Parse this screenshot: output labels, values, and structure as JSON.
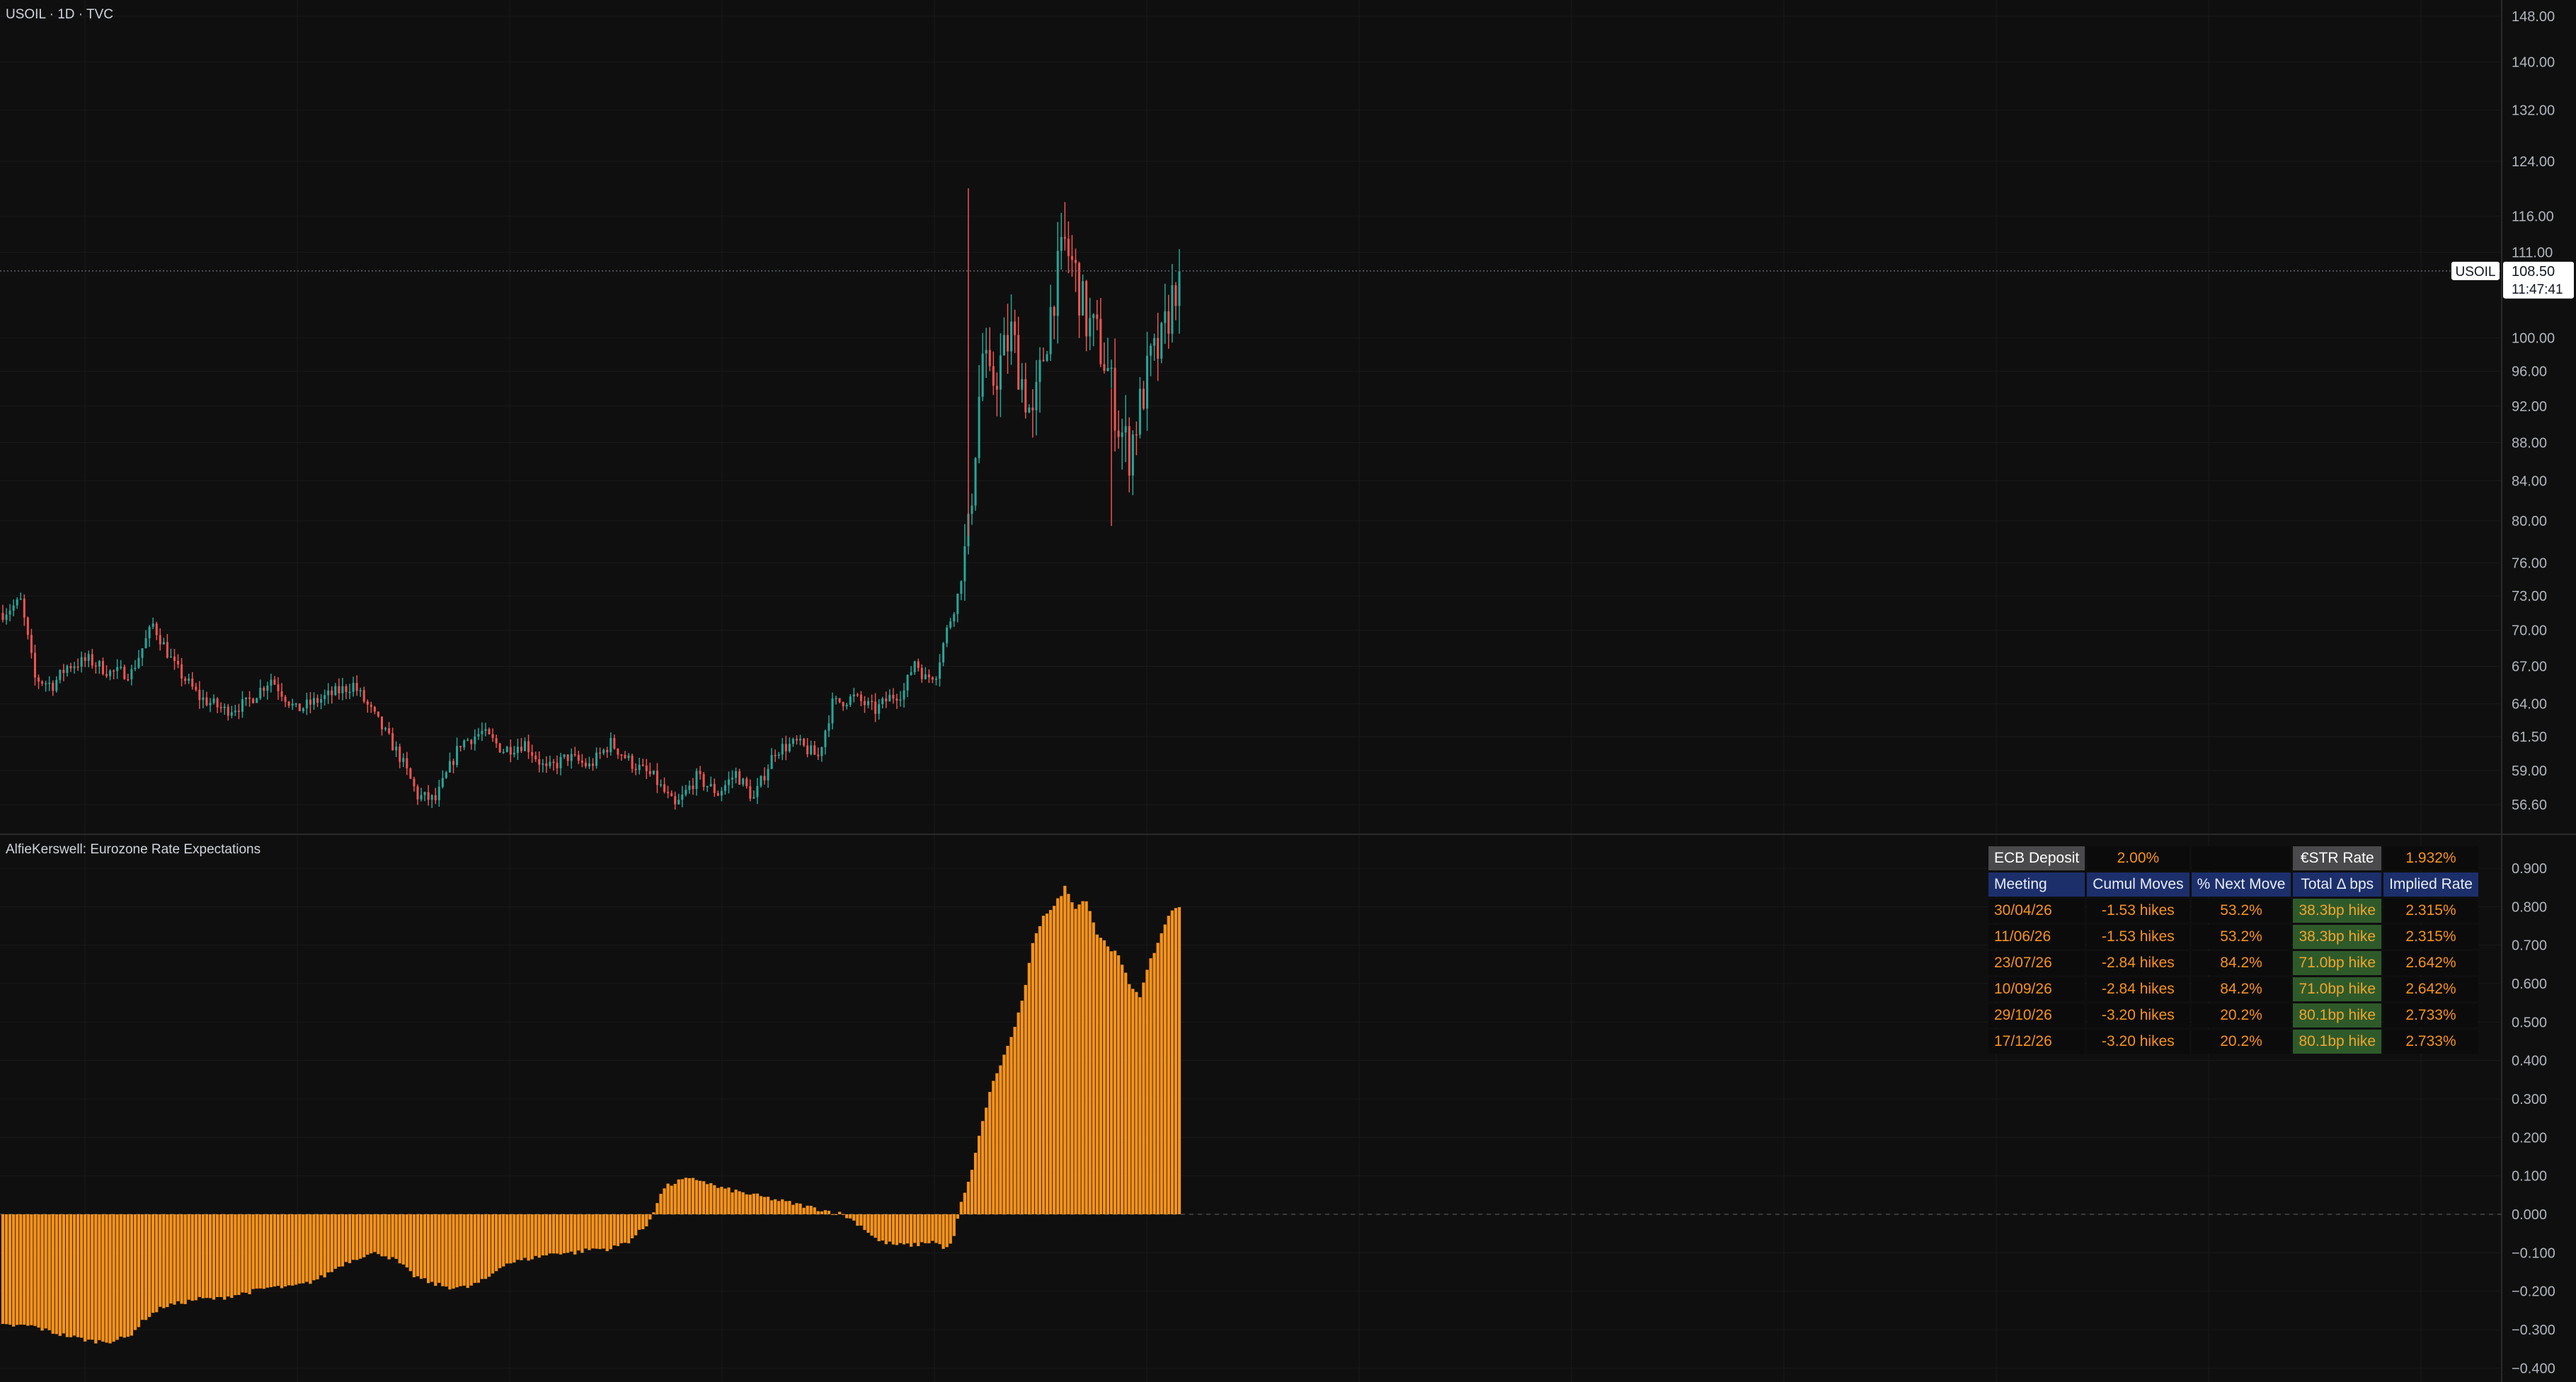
{
  "main_pane": {
    "legend": "USOIL · 1D · TVC",
    "price_label": {
      "symbol": "USOIL",
      "price": "108.50",
      "countdown": "11:47:41",
      "value": 108.5
    }
  },
  "sub_pane": {
    "legend": "AlfieKerswell: Eurozone Rate Expectations"
  },
  "rate_table": {
    "top_row": {
      "ecb_label": "ECB Deposit",
      "ecb_value": "2.00%",
      "blank": "",
      "estr_label": "€STR Rate",
      "estr_value": "1.932%"
    },
    "columns": [
      "Meeting",
      "Cumul Moves",
      "% Next Move",
      "Total Δ bps",
      "Implied Rate"
    ],
    "rows": [
      [
        "30/04/26",
        "-1.53 hikes",
        "53.2%",
        "38.3bp hike",
        "2.315%"
      ],
      [
        "11/06/26",
        "-1.53 hikes",
        "53.2%",
        "38.3bp hike",
        "2.315%"
      ],
      [
        "23/07/26",
        "-2.84 hikes",
        "84.2%",
        "71.0bp hike",
        "2.642%"
      ],
      [
        "10/09/26",
        "-2.84 hikes",
        "84.2%",
        "71.0bp hike",
        "2.642%"
      ],
      [
        "29/10/26",
        "-3.20 hikes",
        "20.2%",
        "80.1bp hike",
        "2.733%"
      ],
      [
        "17/12/26",
        "-3.20 hikes",
        "20.2%",
        "80.1bp hike",
        "2.733%"
      ]
    ]
  },
  "colors": {
    "background": "#0f0f0f",
    "grid": "#1a1a1a",
    "up": "#26a69a",
    "down": "#ef5350",
    "histogram": "#f7931a",
    "axis_text": "#b2b5be"
  },
  "chart_data": [
    {
      "type": "candlestick",
      "title": "USOIL · 1D · TVC",
      "scale": "log",
      "ylim": [
        53.5,
        152
      ],
      "y_ticks": [
        "148.00",
        "140.00",
        "132.00",
        "124.00",
        "116.00",
        "111.00",
        "100.00",
        "96.00",
        "92.00",
        "88.00",
        "84.00",
        "80.00",
        "76.00",
        "73.00",
        "70.00",
        "67.00",
        "64.00",
        "61.50",
        "59.00",
        "56.60"
      ],
      "last_value": 108.5,
      "ohlc_anchor_closes": [
        [
          0,
          71.5
        ],
        [
          5,
          72.5
        ],
        [
          9,
          66.0
        ],
        [
          14,
          65.5
        ],
        [
          18,
          67.0
        ],
        [
          24,
          67.5
        ],
        [
          30,
          66.5
        ],
        [
          36,
          66.5
        ],
        [
          42,
          70.5
        ],
        [
          48,
          67.0
        ],
        [
          55,
          64.5
        ],
        [
          62,
          63.5
        ],
        [
          68,
          64.0
        ],
        [
          75,
          66.0
        ],
        [
          82,
          63.5
        ],
        [
          90,
          64.5
        ],
        [
          98,
          65.5
        ],
        [
          104,
          63.0
        ],
        [
          111,
          60.0
        ],
        [
          116,
          57.2
        ],
        [
          121,
          56.9
        ],
        [
          128,
          61.0
        ],
        [
          134,
          61.8
        ],
        [
          140,
          60.5
        ],
        [
          146,
          61.0
        ],
        [
          152,
          59.0
        ],
        [
          158,
          60.0
        ],
        [
          164,
          59.3
        ],
        [
          170,
          61.0
        ],
        [
          176,
          59.5
        ],
        [
          182,
          58.5
        ],
        [
          188,
          56.4
        ],
        [
          194,
          58.5
        ],
        [
          200,
          57.4
        ],
        [
          205,
          58.8
        ],
        [
          210,
          57.0
        ],
        [
          216,
          60.5
        ],
        [
          222,
          61.0
        ],
        [
          228,
          60.0
        ],
        [
          232,
          64.0
        ],
        [
          238,
          64.5
        ],
        [
          244,
          63.5
        ],
        [
          248,
          64.5
        ],
        [
          252,
          65.0
        ],
        [
          255,
          67.5
        ],
        [
          258,
          66.0
        ],
        [
          261,
          66.5
        ],
        [
          264,
          70.0
        ],
        [
          267,
          73.0
        ],
        [
          270,
          78.5
        ],
        [
          272,
          88.0
        ],
        [
          274,
          98.0
        ],
        [
          276,
          94.0
        ],
        [
          279,
          97.0
        ],
        [
          282,
          100.5
        ],
        [
          285,
          95.0
        ],
        [
          288,
          90.0
        ],
        [
          291,
          98.0
        ],
        [
          294,
          106.0
        ],
        [
          297,
          112.0
        ],
        [
          300,
          108.0
        ],
        [
          303,
          102.0
        ],
        [
          306,
          100.0
        ],
        [
          309,
          96.0
        ],
        [
          312,
          90.0
        ],
        [
          315,
          87.0
        ],
        [
          318,
          92.0
        ],
        [
          321,
          97.0
        ],
        [
          324,
          99.0
        ],
        [
          327,
          105.0
        ],
        [
          329,
          108.5
        ]
      ],
      "n_bars": 330
    },
    {
      "type": "bar",
      "title": "AlfieKerswell: Eurozone Rate Expectations",
      "ylim": [
        -0.43,
        0.97
      ],
      "y_ticks": [
        "0.900",
        "0.800",
        "0.700",
        "0.600",
        "0.500",
        "0.400",
        "0.300",
        "0.200",
        "0.100",
        "0.000",
        "−0.100",
        "−0.200",
        "−0.300",
        "−0.400"
      ],
      "n_bars": 330,
      "anchors": [
        [
          0,
          -0.29
        ],
        [
          8,
          -0.29
        ],
        [
          15,
          -0.31
        ],
        [
          20,
          -0.32
        ],
        [
          25,
          -0.33
        ],
        [
          30,
          -0.33
        ],
        [
          35,
          -0.32
        ],
        [
          40,
          -0.27
        ],
        [
          45,
          -0.24
        ],
        [
          50,
          -0.23
        ],
        [
          55,
          -0.22
        ],
        [
          60,
          -0.22
        ],
        [
          65,
          -0.21
        ],
        [
          70,
          -0.2
        ],
        [
          75,
          -0.19
        ],
        [
          80,
          -0.19
        ],
        [
          85,
          -0.18
        ],
        [
          90,
          -0.16
        ],
        [
          95,
          -0.13
        ],
        [
          100,
          -0.11
        ],
        [
          105,
          -0.1
        ],
        [
          110,
          -0.12
        ],
        [
          115,
          -0.16
        ],
        [
          120,
          -0.18
        ],
        [
          125,
          -0.19
        ],
        [
          130,
          -0.19
        ],
        [
          135,
          -0.17
        ],
        [
          140,
          -0.13
        ],
        [
          145,
          -0.12
        ],
        [
          150,
          -0.11
        ],
        [
          155,
          -0.1
        ],
        [
          160,
          -0.1
        ],
        [
          165,
          -0.09
        ],
        [
          170,
          -0.09
        ],
        [
          175,
          -0.07
        ],
        [
          180,
          -0.03
        ],
        [
          185,
          0.07
        ],
        [
          190,
          0.09
        ],
        [
          195,
          0.09
        ],
        [
          200,
          0.07
        ],
        [
          205,
          0.06
        ],
        [
          210,
          0.05
        ],
        [
          215,
          0.04
        ],
        [
          220,
          0.03
        ],
        [
          225,
          0.02
        ],
        [
          230,
          0.01
        ],
        [
          235,
          0.0
        ],
        [
          240,
          -0.03
        ],
        [
          245,
          -0.07
        ],
        [
          250,
          -0.08
        ],
        [
          255,
          -0.08
        ],
        [
          260,
          -0.07
        ],
        [
          264,
          -0.09
        ],
        [
          266,
          -0.06
        ],
        [
          268,
          0.03
        ],
        [
          270,
          0.08
        ],
        [
          273,
          0.2
        ],
        [
          276,
          0.32
        ],
        [
          279,
          0.39
        ],
        [
          282,
          0.46
        ],
        [
          285,
          0.55
        ],
        [
          288,
          0.7
        ],
        [
          291,
          0.78
        ],
        [
          294,
          0.8
        ],
        [
          297,
          0.85
        ],
        [
          300,
          0.8
        ],
        [
          303,
          0.82
        ],
        [
          306,
          0.73
        ],
        [
          309,
          0.7
        ],
        [
          312,
          0.67
        ],
        [
          315,
          0.6
        ],
        [
          318,
          0.57
        ],
        [
          321,
          0.66
        ],
        [
          324,
          0.73
        ],
        [
          326,
          0.78
        ],
        [
          329,
          0.8
        ]
      ]
    }
  ]
}
